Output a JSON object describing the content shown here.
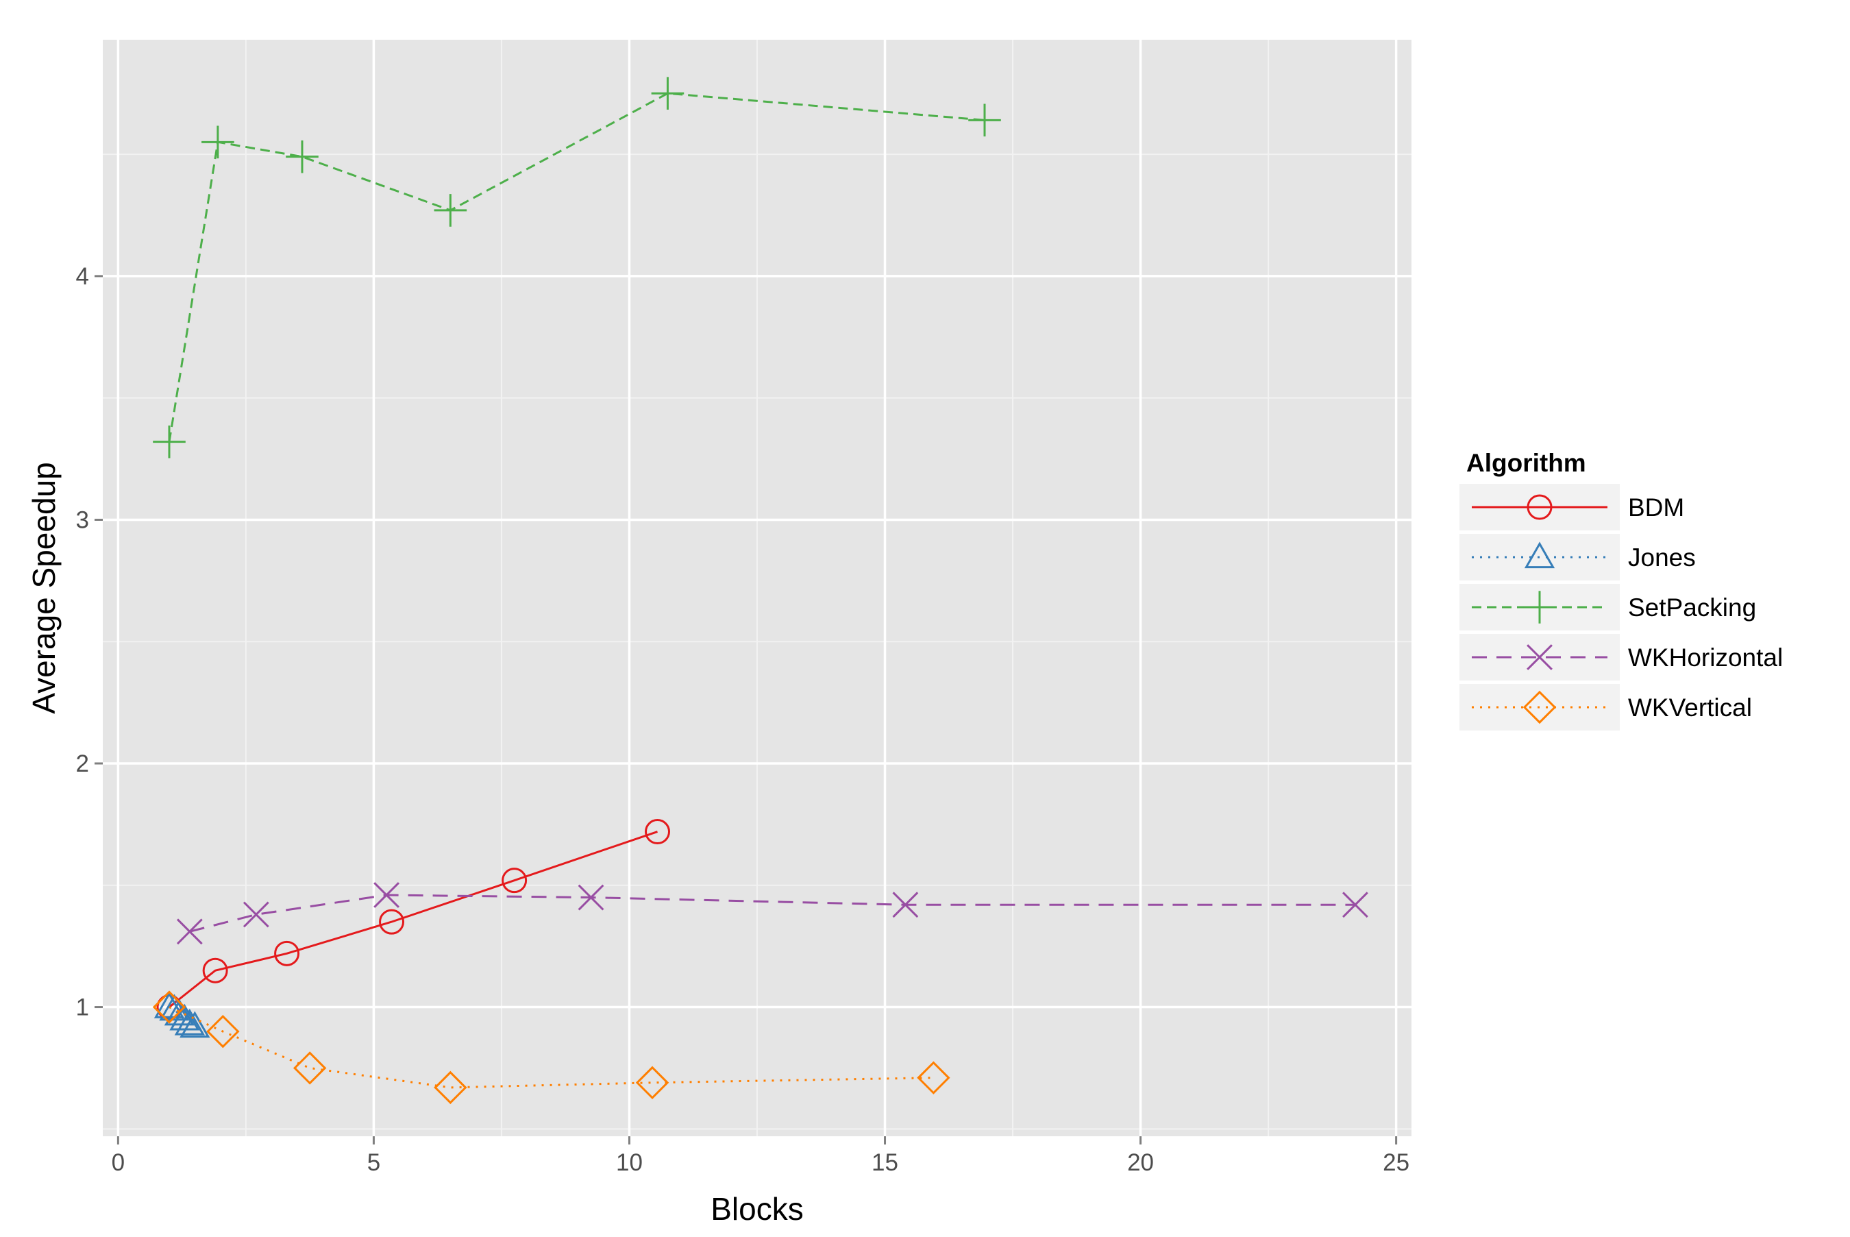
{
  "chart_data": {
    "type": "line",
    "title": "",
    "xlabel": "Blocks",
    "ylabel": "Average Speedup",
    "xlim": [
      -0.3,
      25.3
    ],
    "ylim": [
      0.47,
      4.97
    ],
    "x_ticks": [
      0,
      5,
      10,
      15,
      20,
      25
    ],
    "x_tick_labels": [
      "0",
      "5",
      "10",
      "15",
      "20",
      "25"
    ],
    "y_ticks": [
      1,
      2,
      3,
      4
    ],
    "y_tick_labels": [
      "1",
      "2",
      "3",
      "4"
    ],
    "grid": true,
    "panel_background": "#e5e5e5",
    "legend": {
      "title": "Algorithm",
      "position": "right"
    },
    "series": [
      {
        "name": "BDM",
        "color": "#e41a1c",
        "line_style": "solid",
        "marker": "circle",
        "x": [
          1.0,
          1.9,
          3.3,
          5.35,
          7.75,
          10.55
        ],
        "y": [
          1.0,
          1.15,
          1.22,
          1.35,
          1.52,
          1.72
        ]
      },
      {
        "name": "Jones",
        "color": "#377eb8",
        "line_style": "dotted",
        "marker": "triangle",
        "x": [
          1.0,
          1.1,
          1.2,
          1.3,
          1.4,
          1.5
        ],
        "y": [
          1.0,
          0.99,
          0.97,
          0.95,
          0.93,
          0.92
        ]
      },
      {
        "name": "SetPacking",
        "color": "#4daf4a",
        "line_style": "dashed",
        "marker": "plus",
        "x": [
          1.0,
          1.95,
          3.6,
          6.5,
          10.75,
          16.95
        ],
        "y": [
          3.32,
          4.55,
          4.49,
          4.27,
          4.75,
          4.64
        ]
      },
      {
        "name": "WKHorizontal",
        "color": "#984ea3",
        "line_style": "longdash",
        "marker": "cross",
        "x": [
          1.4,
          2.7,
          5.25,
          9.25,
          15.4,
          24.2
        ],
        "y": [
          1.31,
          1.38,
          1.46,
          1.45,
          1.42,
          1.42
        ]
      },
      {
        "name": "WKVertical",
        "color": "#ff7f00",
        "line_style": "dotted",
        "marker": "diamond",
        "x": [
          1.0,
          2.05,
          3.75,
          6.5,
          10.45,
          15.95
        ],
        "y": [
          1.0,
          0.9,
          0.75,
          0.67,
          0.69,
          0.71
        ]
      }
    ]
  }
}
